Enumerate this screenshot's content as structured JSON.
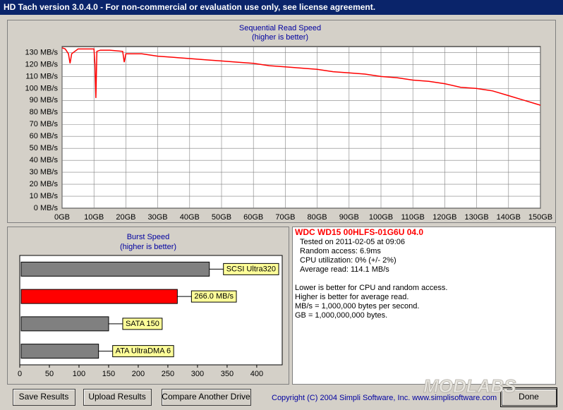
{
  "window": {
    "title": "HD Tach version 3.0.4.0  - For non-commercial or evaluation use only, see license agreement."
  },
  "chart_data": [
    {
      "type": "line",
      "title": "Sequential Read Speed",
      "subtitle": "(higher is better)",
      "color": "#ff0000",
      "grid": true,
      "x": [
        0,
        1,
        2,
        2.5,
        3,
        4,
        5,
        8,
        10,
        10.3,
        10.6,
        10.9,
        12,
        15,
        19,
        19.5,
        20,
        25,
        30,
        35,
        40,
        45,
        50,
        55,
        60,
        65,
        70,
        75,
        80,
        85,
        90,
        95,
        100,
        105,
        110,
        115,
        120,
        125,
        130,
        135,
        140,
        145,
        150
      ],
      "values": [
        134,
        133,
        129,
        121,
        129,
        131,
        133,
        133,
        133,
        120,
        92,
        131,
        132,
        132,
        131,
        122,
        129,
        129,
        127,
        126,
        125,
        124,
        123,
        122,
        121,
        119,
        118,
        117,
        116,
        114,
        113,
        112,
        110,
        109,
        107,
        106,
        104,
        101,
        100,
        98,
        94,
        90,
        86
      ],
      "xlim": [
        0,
        150
      ],
      "ylim": [
        0,
        135
      ],
      "xticks": [
        {
          "value": 0,
          "label": "0GB"
        },
        {
          "value": 10,
          "label": "10GB"
        },
        {
          "value": 20,
          "label": "20GB"
        },
        {
          "value": 30,
          "label": "30GB"
        },
        {
          "value": 40,
          "label": "40GB"
        },
        {
          "value": 50,
          "label": "50GB"
        },
        {
          "value": 60,
          "label": "60GB"
        },
        {
          "value": 70,
          "label": "70GB"
        },
        {
          "value": 80,
          "label": "80GB"
        },
        {
          "value": 90,
          "label": "90GB"
        },
        {
          "value": 100,
          "label": "100GB"
        },
        {
          "value": 110,
          "label": "110GB"
        },
        {
          "value": 120,
          "label": "120GB"
        },
        {
          "value": 130,
          "label": "130GB"
        },
        {
          "value": 140,
          "label": "140GB"
        },
        {
          "value": 150,
          "label": "150GB"
        }
      ],
      "yticks": [
        {
          "value": 0,
          "label": "0 MB/s"
        },
        {
          "value": 10,
          "label": "10 MB/s"
        },
        {
          "value": 20,
          "label": "20 MB/s"
        },
        {
          "value": 30,
          "label": "30 MB/s"
        },
        {
          "value": 40,
          "label": "40 MB/s"
        },
        {
          "value": 50,
          "label": "50 MB/s"
        },
        {
          "value": 60,
          "label": "60 MB/s"
        },
        {
          "value": 70,
          "label": "70 MB/s"
        },
        {
          "value": 80,
          "label": "80 MB/s"
        },
        {
          "value": 90,
          "label": "90 MB/s"
        },
        {
          "value": 100,
          "label": "100 MB/s"
        },
        {
          "value": 110,
          "label": "110 MB/s"
        },
        {
          "value": 120,
          "label": "120 MB/s"
        },
        {
          "value": 130,
          "label": "130 MB/s"
        }
      ]
    },
    {
      "type": "hbar",
      "title": "Burst Speed",
      "subtitle": "(higher is better)",
      "categories": [
        "SCSI Ultra320",
        null,
        "SATA 150",
        "ATA UltraDMA 6"
      ],
      "values": [
        320,
        266,
        150,
        133
      ],
      "value_labels": [
        null,
        "266.0 MB/s",
        null,
        null
      ],
      "colors": [
        "#808080",
        "#ff0000",
        "#808080",
        "#808080"
      ],
      "xlim": [
        0,
        443
      ],
      "xticks": [
        0,
        50,
        100,
        150,
        200,
        250,
        300,
        350,
        400
      ]
    }
  ],
  "info": {
    "drive": "WDC WD15 00HLFS-01G6U 04.0",
    "lines": [
      "Tested on 2011-02-05 at 09:06",
      "Random access: 6.9ms",
      "CPU utilization: 0% (+/- 2%)",
      "Average read: 114.1 MB/s"
    ],
    "notes": [
      "Lower is better for CPU and random access.",
      "Higher is better for average read.",
      "MB/s = 1,000,000 bytes per second.",
      "GB = 1,000,000,000 bytes."
    ]
  },
  "buttons": [
    "Save Results",
    "Upload Results",
    "Compare Another Drive",
    "Done"
  ],
  "copyright": "Copyright (C) 2004 Simpli Software, Inc. www.simplisoftware.com",
  "watermark": "MODLABS"
}
